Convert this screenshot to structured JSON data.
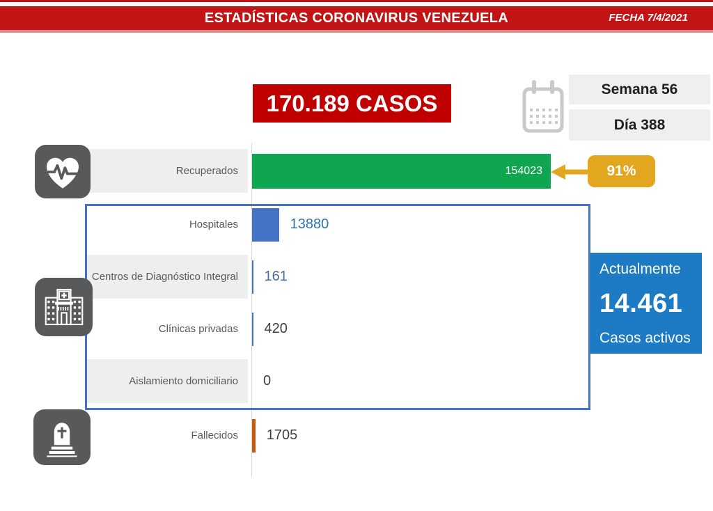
{
  "header": {
    "title": "ESTADÍSTICAS CORONAVIRUS VENEZUELA",
    "date_label": "FECHA 7/4/2021"
  },
  "summary": {
    "total_cases": "170.189 CASOS",
    "week_label": "Semana 56",
    "day_label": "Día 388"
  },
  "recovered_annotation": {
    "percent": "91%"
  },
  "active_panel": {
    "line1": "Actualmente",
    "value": "14.461",
    "line2": "Casos activos"
  },
  "icons": {
    "row0": "heart-pulse-icon",
    "active_group": "hospital-icon",
    "deaths": "tombstone-icon",
    "date": "calendar-icon"
  },
  "colors": {
    "banner_red": "#c21414",
    "total_box_red": "#c00000",
    "recovered_green": "#10a551",
    "hospital_blue": "#4472c4",
    "deaths_orange": "#c55a11",
    "percent_gold": "#e2a71e",
    "active_panel_blue": "#1c7bc4",
    "outline_blue": "#4472c4",
    "icon_gray": "#58595b"
  },
  "chart_data": {
    "type": "bar",
    "orientation": "horizontal",
    "title": "170.189 CASOS",
    "xlabel": "",
    "ylabel": "",
    "axis_hidden": true,
    "max_value": 154023,
    "categories": [
      "Recuperados",
      "Hospitales",
      "Centros de Diagnóstico Integral",
      "Clínicas privadas",
      "Aislamiento domiciliario",
      "Fallecidos"
    ],
    "values": [
      154023,
      13880,
      161,
      420,
      0,
      1705
    ],
    "rows": [
      {
        "label": "Recuperados",
        "value": 154023,
        "display": "154023",
        "bar_color": "#10a551",
        "value_color": "#ffffff",
        "annotation": "91%"
      },
      {
        "label": "Hospitales",
        "value": 13880,
        "display": "13880",
        "bar_color": "#4472c4",
        "value_color": "#2e74b5"
      },
      {
        "label": "Centros de Diagnóstico Integral",
        "value": 161,
        "display": "161",
        "bar_color": "#4472c4",
        "value_color": "#44719c"
      },
      {
        "label": "Clínicas privadas",
        "value": 420,
        "display": "420",
        "bar_color": "#4472c4",
        "value_color": "#3f3f3f"
      },
      {
        "label": "Aislamiento domiciliario",
        "value": 0,
        "display": "0",
        "bar_color": "#4472c4",
        "value_color": "#3f3f3f"
      },
      {
        "label": "Fallecidos",
        "value": 1705,
        "display": "1705",
        "bar_color": "#c55a11",
        "value_color": "#3f3f3f"
      }
    ]
  }
}
